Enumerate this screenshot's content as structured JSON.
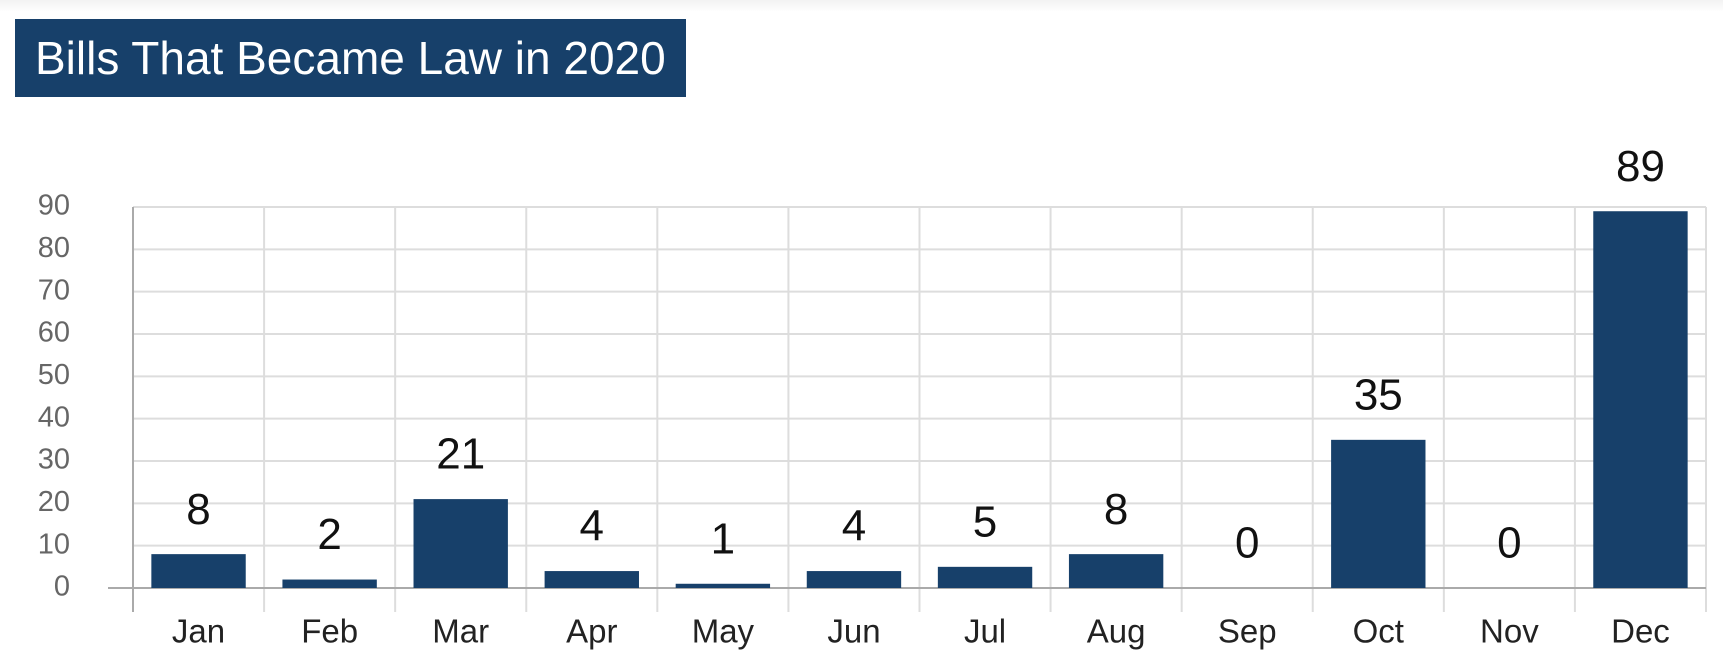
{
  "chart_data": {
    "type": "bar",
    "title": "Bills That Became Law in 2020",
    "categories": [
      "Jan",
      "Feb",
      "Mar",
      "Apr",
      "May",
      "Jun",
      "Jul",
      "Aug",
      "Sep",
      "Oct",
      "Nov",
      "Dec"
    ],
    "values": [
      8,
      2,
      21,
      4,
      1,
      4,
      5,
      8,
      0,
      35,
      0,
      89
    ],
    "color": "#17406a",
    "ylim": [
      0,
      90
    ],
    "yticks": [
      0,
      10,
      20,
      30,
      40,
      50,
      60,
      70,
      80,
      90
    ],
    "grid": true
  }
}
